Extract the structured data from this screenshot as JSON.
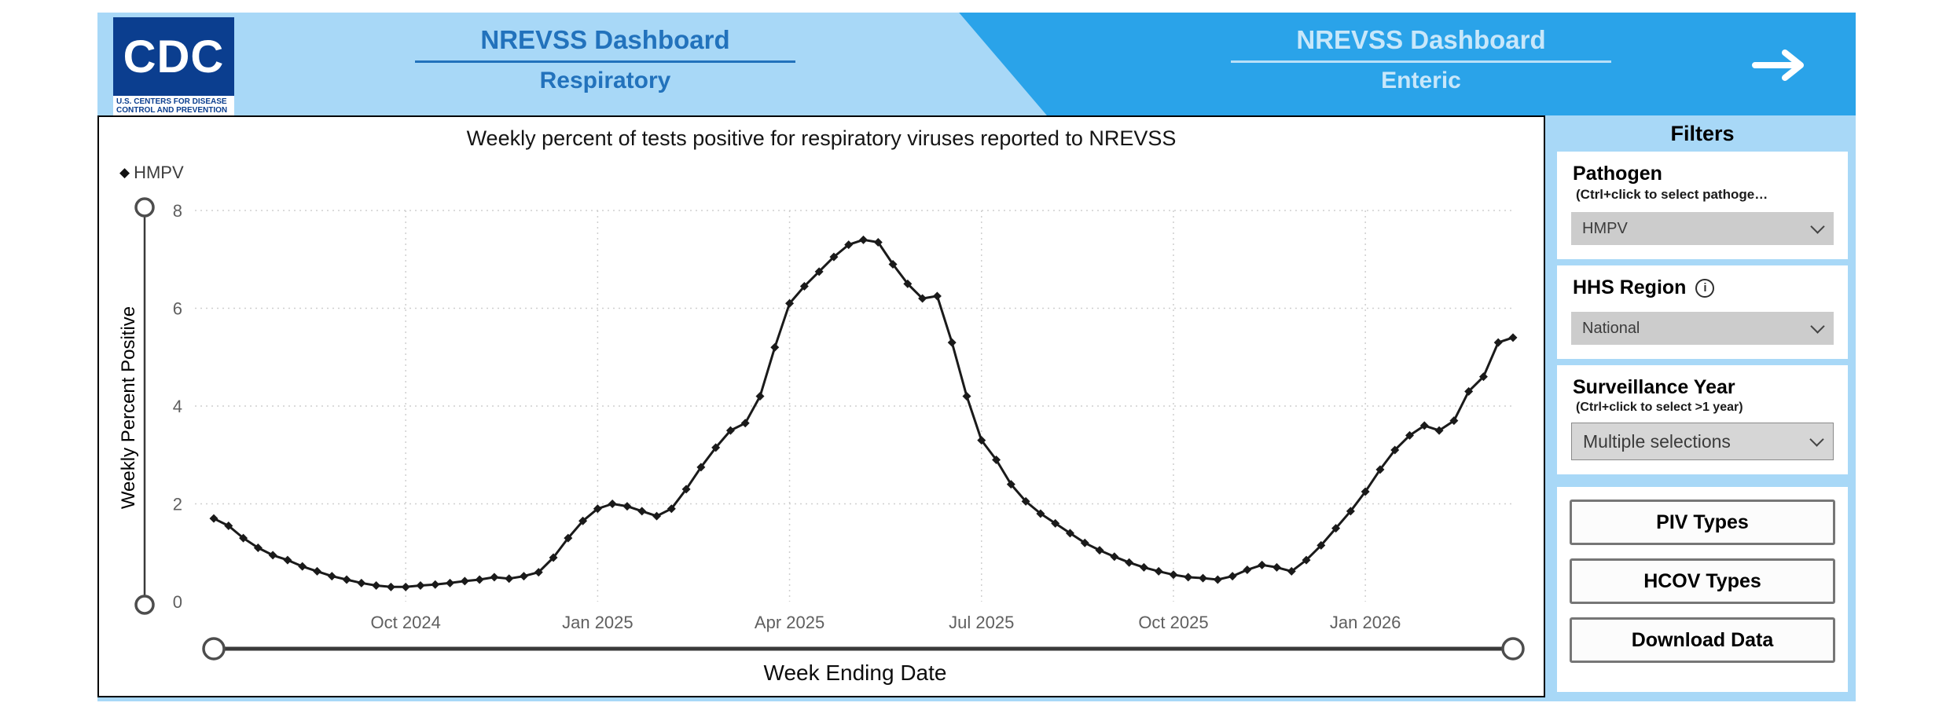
{
  "header": {
    "logo": {
      "acronym": "CDC",
      "org_line1": "U.S. CENTERS FOR DISEASE",
      "org_line2": "CONTROL AND PREVENTION"
    },
    "respiratory_tab": {
      "title": "NREVSS Dashboard",
      "subtitle": "Respiratory"
    },
    "enteric_tab": {
      "title": "NREVSS Dashboard",
      "subtitle": "Enteric"
    },
    "colors": {
      "respiratory_bg": "#A8D8F7",
      "enteric_bg": "#2AA3E9",
      "respiratory_text": "#2272BC",
      "enteric_text": "#C8E7FA"
    }
  },
  "chart": {
    "title": "Weekly percent of tests positive for respiratory viruses reported to NREVSS",
    "y_axis_title": "Weekly Percent Positive",
    "x_axis_title": "Week Ending Date"
  },
  "chart_data": {
    "type": "line",
    "title": "Weekly percent of tests positive for respiratory viruses reported to NREVSS",
    "xlabel": "Week Ending Date",
    "ylabel": "Weekly Percent Positive",
    "ylim": [
      0,
      8
    ],
    "y_ticks": [
      0,
      2,
      4,
      6,
      8
    ],
    "grid": "dotted",
    "legend_position": "top-left",
    "x_unit": "week",
    "x_ticks": [
      {
        "label": "Oct 2024",
        "index": 13
      },
      {
        "label": "Jan 2025",
        "index": 26
      },
      {
        "label": "Apr 2025",
        "index": 39
      },
      {
        "label": "Jul 2025",
        "index": 52
      },
      {
        "label": "Oct 2025",
        "index": 65
      },
      {
        "label": "Jan 2026",
        "index": 78
      }
    ],
    "series": [
      {
        "name": "HMPV",
        "marker": "diamond",
        "color": "#1A1A1A",
        "values": [
          1.7,
          1.55,
          1.3,
          1.1,
          0.95,
          0.85,
          0.72,
          0.62,
          0.52,
          0.45,
          0.38,
          0.33,
          0.3,
          0.3,
          0.33,
          0.35,
          0.38,
          0.42,
          0.45,
          0.5,
          0.47,
          0.52,
          0.6,
          0.9,
          1.3,
          1.65,
          1.9,
          2.0,
          1.95,
          1.85,
          1.75,
          1.9,
          2.3,
          2.75,
          3.15,
          3.5,
          3.65,
          4.2,
          5.2,
          6.1,
          6.45,
          6.75,
          7.05,
          7.3,
          7.4,
          7.35,
          6.9,
          6.5,
          6.2,
          6.25,
          5.3,
          4.2,
          3.3,
          2.9,
          2.4,
          2.05,
          1.8,
          1.6,
          1.4,
          1.2,
          1.05,
          0.92,
          0.8,
          0.7,
          0.62,
          0.55,
          0.5,
          0.48,
          0.45,
          0.52,
          0.65,
          0.75,
          0.7,
          0.62,
          0.85,
          1.15,
          1.5,
          1.85,
          2.25,
          2.7,
          3.1,
          3.4,
          3.6,
          3.5,
          3.7,
          4.3,
          4.6,
          5.3,
          5.4
        ]
      }
    ]
  },
  "filters_panel": {
    "title": "Filters",
    "pathogen": {
      "label": "Pathogen",
      "hint": "(Ctrl+click to select pathoge…",
      "selected": "HMPV"
    },
    "hhs_region": {
      "label": "HHS Region",
      "selected": "National"
    },
    "surveillance_year": {
      "label": "Surveillance Year",
      "hint": "(Ctrl+click to select >1 year)",
      "selected": "Multiple selections"
    },
    "buttons": {
      "piv": "PIV Types",
      "hcov": "HCOV Types",
      "download": "Download Data"
    }
  }
}
